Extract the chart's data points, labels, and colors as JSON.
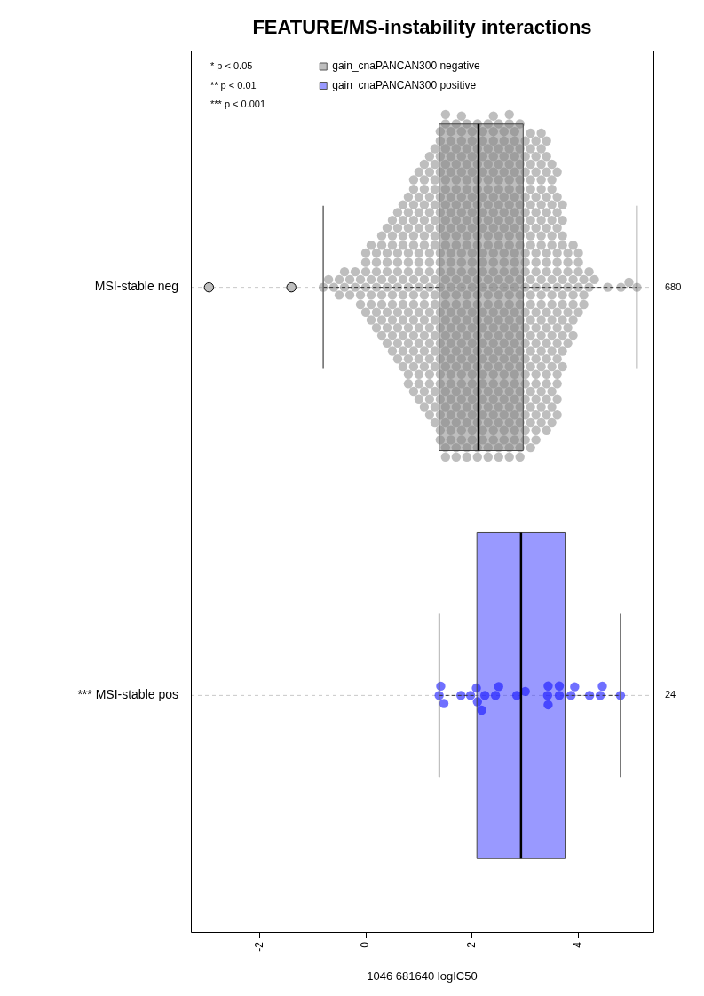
{
  "chart_data": {
    "type": "box",
    "title": "FEATURE/MS-instability interactions",
    "xlabel": "1046 681640 logIC50",
    "orientation": "horizontal",
    "categories": [
      "MSI-stable neg",
      "*** MSI-stable pos"
    ],
    "y2_categories": [
      "680",
      "24"
    ],
    "xlim": [
      -3.29,
      5.41
    ],
    "xticks": [
      -2,
      0,
      2,
      4
    ],
    "grid": "y",
    "legend": "top",
    "annotations": [
      "* p < 0.05",
      "** p < 0.01",
      "*** p < 0.001"
    ],
    "series": [
      {
        "name": "gain_cnaPANCAN300 negative",
        "color": "#bebebe",
        "boxes": [
          {
            "low": -0.8,
            "q1": 1.38,
            "median": 2.12,
            "q3": 2.96,
            "high": 5.1,
            "outliers": [
              -2.95,
              -1.4
            ]
          },
          null
        ]
      },
      {
        "name": "gain_cnaPANCAN300 positive",
        "color": "#9999ff",
        "boxes": [
          null,
          {
            "low": 1.38,
            "q1": 2.09,
            "median": 2.92,
            "q3": 3.75,
            "high": 4.79
          }
        ]
      },
      {
        "type": "scatter",
        "color": "#bebebe",
        "marker": "circle",
        "x": [
          "MSI-stable neg",
          "MSI-stable neg",
          "MSI-stable neg",
          "MSI-stable neg",
          "MSI-stable neg",
          "MSI-stable neg",
          "MSI-stable neg",
          "MSI-stable neg",
          "MSI-stable neg",
          "MSI-stable neg",
          "MSI-stable neg",
          "MSI-stable neg",
          "MSI-stable neg",
          "MSI-stable neg",
          "MSI-stable neg",
          "MSI-stable neg",
          "MSI-stable neg",
          "MSI-stable neg",
          "MSI-stable neg",
          "MSI-stable neg",
          "MSI-stable neg",
          "MSI-stable neg",
          "MSI-stable neg",
          "MSI-stable neg",
          "MSI-stable neg",
          "MSI-stable neg",
          "MSI-stable neg",
          "MSI-stable neg",
          "MSI-stable neg",
          "MSI-stable neg",
          "MSI-stable neg",
          "MSI-stable neg",
          "MSI-stable neg",
          "MSI-stable neg",
          "MSI-stable neg",
          "MSI-stable neg",
          "MSI-stable neg",
          "MSI-stable neg",
          "MSI-stable neg",
          "MSI-stable neg",
          "MSI-stable neg",
          "MSI-stable neg",
          "MSI-stable neg",
          "MSI-stable neg",
          "MSI-stable neg",
          "MSI-stable neg",
          "MSI-stable neg",
          "MSI-stable neg",
          "MSI-stable neg",
          "MSI-stable neg",
          "MSI-stable neg",
          "MSI-stable neg",
          "MSI-stable neg",
          "MSI-stable neg",
          "MSI-stable neg",
          "MSI-stable neg",
          "MSI-stable neg",
          "MSI-stable neg",
          "MSI-stable neg",
          "MSI-stable neg",
          "MSI-stable neg",
          "MSI-stable neg",
          "MSI-stable neg",
          "MSI-stable neg",
          "MSI-stable neg",
          "MSI-stable neg",
          "MSI-stable neg",
          "MSI-stable neg",
          "MSI-stable neg",
          "MSI-stable neg",
          "MSI-stable neg",
          "MSI-stable neg",
          "MSI-stable neg",
          "MSI-stable neg",
          "MSI-stable neg",
          "MSI-stable neg",
          "MSI-stable neg",
          "MSI-stable neg",
          "MSI-stable neg",
          "MSI-stable neg",
          "MSI-stable neg",
          "MSI-stable neg",
          "MSI-stable neg",
          "MSI-stable neg",
          "MSI-stable neg",
          "MSI-stable neg",
          "MSI-stable neg",
          "MSI-stable neg",
          "MSI-stable neg",
          "MSI-stable neg",
          "MSI-stable neg",
          "MSI-stable neg",
          "MSI-stable neg",
          "MSI-stable neg",
          "MSI-stable neg",
          "MSI-stable neg",
          "MSI-stable neg",
          "MSI-stable neg",
          "MSI-stable neg",
          "MSI-stable neg",
          "MSI-stable neg",
          "MSI-stable neg",
          "MSI-stable neg",
          "MSI-stable neg",
          "MSI-stable neg",
          "MSI-stable neg",
          "MSI-stable neg",
          "MSI-stable neg",
          "MSI-stable neg",
          "MSI-stable neg",
          "MSI-stable neg",
          "MSI-stable neg",
          "MSI-stable neg",
          "MSI-stable neg",
          "MSI-stable neg",
          "MSI-stable neg",
          "MSI-stable neg",
          "MSI-stable neg",
          "MSI-stable neg",
          "MSI-stable neg",
          "MSI-stable neg",
          "MSI-stable neg",
          "MSI-stable neg",
          "MSI-stable neg",
          "MSI-stable neg",
          "MSI-stable neg",
          "MSI-stable neg",
          "MSI-stable neg",
          "MSI-stable neg",
          "MSI-stable neg",
          "MSI-stable neg",
          "MSI-stable neg",
          "MSI-stable neg",
          "MSI-stable neg",
          "MSI-stable neg",
          "MSI-stable neg",
          "MSI-stable neg",
          "MSI-stable neg",
          "MSI-stable neg",
          "MSI-stable neg",
          "MSI-stable neg",
          "MSI-stable neg",
          "MSI-stable neg",
          "MSI-stable neg",
          "MSI-stable neg",
          "MSI-stable neg",
          "MSI-stable neg",
          "MSI-stable neg",
          "MSI-stable neg",
          "MSI-stable neg",
          "MSI-stable neg",
          "MSI-stable neg",
          "MSI-stable neg",
          "MSI-stable neg",
          "MSI-stable neg",
          "MSI-stable neg",
          "MSI-stable neg",
          "MSI-stable neg",
          "MSI-stable neg",
          "MSI-stable neg",
          "MSI-stable neg",
          "MSI-stable neg",
          "MSI-stable neg",
          "MSI-stable neg",
          "MSI-stable neg",
          "MSI-stable neg",
          "MSI-stable neg",
          "MSI-stable neg",
          "MSI-stable neg",
          "MSI-stable neg",
          "MSI-stable neg",
          "MSI-stable neg",
          "MSI-stable neg",
          "MSI-stable neg",
          "MSI-stable neg",
          "MSI-stable neg",
          "MSI-stable neg",
          "MSI-stable neg",
          "MSI-stable neg",
          "MSI-stable neg",
          "MSI-stable neg",
          "MSI-stable neg",
          "MSI-stable neg",
          "MSI-stable neg",
          "MSI-stable neg",
          "MSI-stable neg",
          "MSI-stable neg",
          "MSI-stable neg",
          "MSI-stable neg",
          "MSI-stable neg",
          "MSI-stable neg",
          "MSI-stable neg",
          "MSI-stable neg",
          "MSI-stable neg",
          "MSI-stable neg",
          "MSI-stable neg",
          "MSI-stable neg",
          "MSI-stable neg",
          "MSI-stable neg",
          "MSI-stable neg",
          "MSI-stable neg",
          "MSI-stable neg",
          "MSI-stable neg",
          "MSI-stable neg",
          "MSI-stable neg",
          "MSI-stable neg",
          "MSI-stable neg",
          "MSI-stable neg",
          "MSI-stable neg",
          "MSI-stable neg",
          "MSI-stable neg",
          "MSI-stable neg",
          "MSI-stable neg",
          "MSI-stable neg",
          "MSI-stable neg",
          "MSI-stable neg",
          "MSI-stable neg",
          "MSI-stable neg",
          "MSI-stable neg",
          "MSI-stable neg",
          "MSI-stable neg",
          "MSI-stable neg",
          "MSI-stable neg",
          "MSI-stable neg",
          "MSI-stable neg",
          "MSI-stable neg",
          "MSI-stable neg",
          "MSI-stable neg",
          "MSI-stable neg",
          "MSI-stable neg",
          "MSI-stable neg",
          "MSI-stable neg",
          "MSI-stable neg",
          "MSI-stable neg",
          "MSI-stable neg",
          "MSI-stable neg",
          "MSI-stable neg",
          "MSI-stable neg",
          "MSI-stable neg",
          "MSI-stable neg",
          "MSI-stable neg",
          "MSI-stable neg",
          "MSI-stable neg",
          "MSI-stable neg",
          "MSI-stable neg",
          "MSI-stable neg",
          "MSI-stable neg",
          "MSI-stable neg",
          "MSI-stable neg",
          "MSI-stable neg",
          "MSI-stable neg",
          "MSI-stable neg",
          "MSI-stable neg",
          "MSI-stable neg",
          "MSI-stable neg",
          "MSI-stable neg",
          "MSI-stable neg",
          "MSI-stable neg",
          "MSI-stable neg",
          "MSI-stable neg",
          "MSI-stable neg",
          "MSI-stable neg",
          "MSI-stable neg",
          "MSI-stable neg",
          "MSI-stable neg",
          "MSI-stable neg",
          "MSI-stable neg",
          "MSI-stable neg",
          "MSI-stable neg",
          "MSI-stable neg",
          "MSI-stable neg",
          "MSI-stable neg",
          "MSI-stable neg",
          "MSI-stable neg",
          "MSI-stable neg",
          "MSI-stable neg",
          "MSI-stable neg",
          "MSI-stable neg",
          "MSI-stable neg",
          "MSI-stable neg",
          "MSI-stable neg",
          "MSI-stable neg",
          "MSI-stable neg",
          "MSI-stable neg",
          "MSI-stable neg",
          "MSI-stable neg",
          "MSI-stable neg",
          "MSI-stable neg",
          "MSI-stable neg",
          "MSI-stable neg",
          "MSI-stable neg",
          "MSI-stable neg",
          "MSI-stable neg",
          "MSI-stable neg",
          "MSI-stable neg",
          "MSI-stable neg",
          "MSI-stable neg",
          "MSI-stable neg",
          "MSI-stable neg",
          "MSI-stable neg",
          "MSI-stable neg",
          "MSI-stable neg",
          "MSI-stable neg",
          "MSI-stable neg",
          "MSI-stable neg",
          "MSI-stable neg",
          "MSI-stable neg",
          "MSI-stable neg",
          "MSI-stable neg",
          "MSI-stable neg",
          "MSI-stable neg",
          "MSI-stable neg",
          "MSI-stable neg",
          "MSI-stable neg",
          "MSI-stable neg",
          "MSI-stable neg",
          "MSI-stable neg",
          "MSI-stable neg",
          "MSI-stable neg",
          "MSI-stable neg",
          "MSI-stable neg",
          "MSI-stable neg",
          "MSI-stable neg",
          "MSI-stable neg",
          "MSI-stable neg",
          "MSI-stable neg",
          "MSI-stable neg",
          "MSI-stable neg",
          "MSI-stable neg",
          "MSI-stable neg",
          "MSI-stable neg",
          "MSI-stable neg",
          "MSI-stable neg",
          "MSI-stable neg",
          "MSI-stable neg",
          "MSI-stable neg",
          "MSI-stable neg",
          "MSI-stable neg",
          "MSI-stable neg",
          "MSI-stable neg",
          "MSI-stable neg",
          "MSI-stable neg",
          "MSI-stable neg",
          "MSI-stable neg",
          "MSI-stable neg",
          "MSI-stable neg",
          "MSI-stable neg",
          "MSI-stable neg",
          "MSI-stable neg",
          "MSI-stable neg",
          "MSI-stable neg",
          "MSI-stable neg",
          "MSI-stable neg",
          "MSI-stable neg",
          "MSI-stable neg",
          "MSI-stable neg",
          "MSI-stable neg",
          "MSI-stable neg",
          "MSI-stable neg",
          "MSI-stable neg",
          "MSI-stable neg",
          "MSI-stable neg",
          "MSI-stable neg",
          "MSI-stable neg",
          "MSI-stable neg",
          "MSI-stable neg",
          "MSI-stable neg",
          "MSI-stable neg",
          "MSI-stable neg",
          "MSI-stable neg",
          "MSI-stable neg",
          "MSI-stable neg",
          "MSI-stable neg",
          "MSI-stable neg",
          "MSI-stable neg",
          "MSI-stable neg",
          "MSI-stable neg",
          "MSI-stable neg",
          "MSI-stable neg",
          "MSI-stable neg",
          "MSI-stable neg",
          "MSI-stable neg",
          "MSI-stable neg",
          "MSI-stable neg",
          "MSI-stable neg",
          "MSI-stable neg",
          "MSI-stable neg",
          "MSI-stable neg",
          "MSI-stable neg",
          "MSI-stable neg",
          "MSI-stable neg",
          "MSI-stable neg",
          "MSI-stable neg",
          "MSI-stable neg",
          "MSI-stable neg",
          "MSI-stable neg",
          "MSI-stable neg",
          "MSI-stable neg",
          "MSI-stable neg",
          "MSI-stable neg",
          "MSI-stable neg",
          "MSI-stable neg",
          "MSI-stable neg",
          "MSI-stable neg",
          "MSI-stable neg",
          "MSI-stable neg",
          "MSI-stable neg",
          "MSI-stable neg",
          "MSI-stable neg",
          "MSI-stable neg",
          "MSI-stable neg",
          "MSI-stable neg",
          "MSI-stable neg",
          "MSI-stable neg",
          "MSI-stable neg",
          "MSI-stable neg",
          "MSI-stable neg",
          "MSI-stable neg",
          "MSI-stable neg",
          "MSI-stable neg",
          "MSI-stable neg",
          "MSI-stable neg",
          "MSI-stable neg",
          "MSI-stable neg",
          "MSI-stable neg",
          "MSI-stable neg",
          "MSI-stable neg",
          "MSI-stable neg",
          "MSI-stable neg",
          "MSI-stable neg",
          "MSI-stable neg",
          "MSI-stable neg",
          "MSI-stable neg",
          "MSI-stable neg",
          "MSI-stable neg",
          "MSI-stable neg",
          "MSI-stable neg",
          "MSI-stable neg",
          "MSI-stable neg",
          "MSI-stable neg",
          "MSI-stable neg",
          "MSI-stable neg",
          "MSI-stable neg",
          "MSI-stable neg",
          "MSI-stable neg",
          "MSI-stable neg",
          "MSI-stable neg",
          "MSI-stable neg",
          "MSI-stable neg",
          "MSI-stable neg",
          "MSI-stable neg",
          "MSI-stable neg",
          "MSI-stable neg",
          "MSI-stable neg",
          "MSI-stable neg",
          "MSI-stable neg",
          "MSI-stable neg",
          "MSI-stable neg",
          "MSI-stable neg",
          "MSI-stable neg",
          "MSI-stable neg",
          "MSI-stable neg",
          "MSI-stable neg",
          "MSI-stable neg",
          "MSI-stable neg",
          "MSI-stable neg",
          "MSI-stable neg",
          "MSI-stable neg",
          "MSI-stable neg",
          "MSI-stable neg",
          "MSI-stable neg",
          "MSI-stable neg",
          "MSI-stable neg",
          "MSI-stable neg",
          "MSI-stable neg",
          "MSI-stable neg",
          "MSI-stable neg",
          "MSI-stable neg",
          "MSI-stable neg",
          "MSI-stable neg",
          "MSI-stable neg",
          "MSI-stable neg",
          "MSI-stable neg",
          "MSI-stable neg",
          "MSI-stable neg",
          "MSI-stable neg",
          "MSI-stable neg",
          "MSI-stable neg",
          "MSI-stable neg",
          "MSI-stable neg",
          "MSI-stable neg",
          "MSI-stable neg",
          "MSI-stable neg",
          "MSI-stable neg",
          "MSI-stable neg",
          "MSI-stable neg",
          "MSI-stable neg",
          "MSI-stable neg",
          "MSI-stable neg",
          "MSI-stable neg",
          "MSI-stable neg",
          "MSI-stable neg",
          "MSI-stable neg",
          "MSI-stable neg",
          "MSI-stable neg",
          "MSI-stable neg",
          "MSI-stable neg",
          "MSI-stable neg",
          "MSI-stable neg",
          "MSI-stable neg",
          "MSI-stable neg",
          "MSI-stable neg",
          "MSI-stable neg",
          "MSI-stable neg",
          "MSI-stable neg",
          "MSI-stable neg",
          "MSI-stable neg",
          "MSI-stable neg",
          "MSI-stable neg",
          "MSI-stable neg",
          "MSI-stable neg",
          "MSI-stable neg",
          "MSI-stable neg",
          "MSI-stable neg",
          "MSI-stable neg",
          "MSI-stable neg",
          "MSI-stable neg",
          "MSI-stable neg",
          "MSI-stable neg",
          "MSI-stable neg",
          "MSI-stable neg",
          "MSI-stable neg",
          "MSI-stable neg",
          "MSI-stable neg",
          "MSI-stable neg",
          "MSI-stable neg",
          "MSI-stable neg",
          "MSI-stable neg",
          "MSI-stable neg",
          "MSI-stable neg",
          "MSI-stable neg",
          "MSI-stable neg",
          "MSI-stable neg",
          "MSI-stable neg",
          "MSI-stable neg",
          "MSI-stable neg",
          "MSI-stable neg",
          "MSI-stable neg",
          "MSI-stable neg",
          "MSI-stable neg",
          "MSI-stable neg",
          "MSI-stable neg",
          "MSI-stable neg",
          "MSI-stable neg",
          "MSI-stable neg",
          "MSI-stable neg",
          "MSI-stable neg",
          "MSI-stable neg",
          "MSI-stable neg",
          "MSI-stable neg",
          "MSI-stable neg",
          "MSI-stable neg",
          "MSI-stable neg",
          "MSI-stable neg",
          "MSI-stable neg",
          "MSI-stable neg",
          "MSI-stable neg",
          "MSI-stable neg",
          "MSI-stable neg",
          "MSI-stable neg",
          "MSI-stable neg",
          "MSI-stable neg",
          "MSI-stable neg",
          "MSI-stable neg",
          "MSI-stable neg",
          "MSI-stable neg",
          "MSI-stable neg",
          "MSI-stable neg",
          "MSI-stable neg",
          "MSI-stable neg",
          "MSI-stable neg",
          "MSI-stable neg",
          "MSI-stable neg",
          "MSI-stable neg",
          "MSI-stable neg",
          "MSI-stable neg",
          "MSI-stable neg",
          "MSI-stable neg",
          "MSI-stable neg",
          "MSI-stable neg",
          "MSI-stable neg",
          "MSI-stable neg",
          "MSI-stable neg",
          "MSI-stable neg",
          "MSI-stable neg",
          "MSI-stable neg",
          "MSI-stable neg",
          "MSI-stable neg",
          "MSI-stable neg",
          "MSI-stable neg",
          "MSI-stable neg",
          "MSI-stable neg",
          "MSI-stable neg",
          "MSI-stable neg",
          "MSI-stable neg",
          "MSI-stable neg",
          "MSI-stable neg",
          "MSI-stable neg",
          "MSI-stable neg",
          "MSI-stable neg",
          "MSI-stable neg",
          "MSI-stable neg",
          "MSI-stable neg",
          "MSI-stable neg",
          "MSI-stable neg",
          "MSI-stable neg",
          "MSI-stable neg",
          "MSI-stable neg",
          "MSI-stable neg",
          "MSI-stable neg",
          "MSI-stable neg",
          "MSI-stable neg",
          "MSI-stable neg",
          "MSI-stable neg",
          "MSI-stable neg",
          "MSI-stable neg",
          "MSI-stable neg",
          "MSI-stable neg",
          "MSI-stable neg",
          "MSI-stable neg",
          "MSI-stable neg",
          "MSI-stable neg",
          "MSI-stable neg",
          "MSI-stable neg",
          "MSI-stable neg",
          "MSI-stable neg",
          "MSI-stable neg",
          "MSI-stable neg",
          "MSI-stable neg",
          "MSI-stable neg",
          "MSI-stable neg",
          "MSI-stable neg",
          "MSI-stable neg",
          "MSI-stable neg",
          "MSI-stable neg",
          "MSI-stable neg",
          "MSI-stable neg",
          "MSI-stable neg",
          "MSI-stable neg",
          "MSI-stable neg",
          "MSI-stable neg",
          "MSI-stable neg",
          "MSI-stable neg",
          "MSI-stable neg",
          "MSI-stable neg",
          "MSI-stable neg",
          "MSI-stable neg",
          "MSI-stable neg",
          "MSI-stable neg",
          "MSI-stable neg",
          "MSI-stable neg",
          "MSI-stable neg",
          "MSI-stable neg",
          "MSI-stable neg",
          "MSI-stable neg",
          "MSI-stable neg",
          "MSI-stable neg",
          "MSI-stable neg",
          "MSI-stable neg",
          "MSI-stable neg",
          "MSI-stable neg",
          "MSI-stable neg",
          "MSI-stable neg",
          "MSI-stable neg",
          "MSI-stable neg",
          "MSI-stable neg",
          "MSI-stable neg",
          "MSI-stable neg"
        ],
        "values": [
          -0.8,
          -0.7,
          -0.6,
          -0.5,
          -0.5,
          -0.4,
          -0.4,
          -0.3,
          -0.3,
          -0.2,
          -0.2,
          -0.1,
          -0.1,
          -0.1,
          0,
          0,
          0,
          0,
          0,
          0.1,
          0.1,
          0.1,
          0.1,
          0.1,
          0.2,
          0.2,
          0.2,
          0.2,
          0.2,
          0.2,
          0.3,
          0.3,
          0.3,
          0.3,
          0.3,
          0.3,
          0.3,
          0.4,
          0.4,
          0.4,
          0.4,
          0.4,
          0.4,
          0.4,
          0.4,
          0.5,
          0.5,
          0.5,
          0.5,
          0.5,
          0.5,
          0.5,
          0.5,
          0.5,
          0.6,
          0.6,
          0.6,
          0.6,
          0.6,
          0.6,
          0.6,
          0.6,
          0.6,
          0.6,
          0.7,
          0.7,
          0.7,
          0.7,
          0.7,
          0.7,
          0.7,
          0.7,
          0.7,
          0.7,
          0.7,
          0.8,
          0.8,
          0.8,
          0.8,
          0.8,
          0.8,
          0.8,
          0.8,
          0.8,
          0.8,
          0.8,
          0.8,
          0.8,
          0.9,
          0.9,
          0.9,
          0.9,
          0.9,
          0.9,
          0.9,
          0.9,
          0.9,
          0.9,
          0.9,
          0.9,
          0.9,
          0.9,
          1,
          1,
          1,
          1,
          1,
          1,
          1,
          1,
          1,
          1,
          1,
          1,
          1,
          1,
          1,
          1.1,
          1.1,
          1.1,
          1.1,
          1.1,
          1.1,
          1.1,
          1.1,
          1.1,
          1.1,
          1.1,
          1.1,
          1.1,
          1.1,
          1.1,
          1.1,
          1.2,
          1.2,
          1.2,
          1.2,
          1.2,
          1.2,
          1.2,
          1.2,
          1.2,
          1.2,
          1.2,
          1.2,
          1.2,
          1.2,
          1.2,
          1.2,
          1.2,
          1.3,
          1.3,
          1.3,
          1.3,
          1.3,
          1.3,
          1.3,
          1.3,
          1.3,
          1.3,
          1.3,
          1.3,
          1.3,
          1.3,
          1.3,
          1.3,
          1.3,
          1.3,
          1.4,
          1.4,
          1.4,
          1.4,
          1.4,
          1.4,
          1.4,
          1.4,
          1.4,
          1.4,
          1.4,
          1.4,
          1.4,
          1.4,
          1.4,
          1.4,
          1.4,
          1.4,
          1.4,
          1.4,
          1.4,
          1.5,
          1.5,
          1.5,
          1.5,
          1.5,
          1.5,
          1.5,
          1.5,
          1.5,
          1.5,
          1.5,
          1.5,
          1.5,
          1.5,
          1.5,
          1.5,
          1.5,
          1.5,
          1.5,
          1.5,
          1.5,
          1.5,
          1.6,
          1.6,
          1.6,
          1.6,
          1.6,
          1.6,
          1.6,
          1.6,
          1.6,
          1.6,
          1.6,
          1.6,
          1.6,
          1.6,
          1.6,
          1.6,
          1.6,
          1.6,
          1.6,
          1.6,
          1.6,
          1.7,
          1.7,
          1.7,
          1.7,
          1.7,
          1.7,
          1.7,
          1.7,
          1.7,
          1.7,
          1.7,
          1.7,
          1.7,
          1.7,
          1.7,
          1.7,
          1.7,
          1.7,
          1.7,
          1.7,
          1.7,
          1.8,
          1.8,
          1.8,
          1.8,
          1.8,
          1.8,
          1.8,
          1.8,
          1.8,
          1.8,
          1.8,
          1.8,
          1.8,
          1.8,
          1.8,
          1.8,
          1.8,
          1.8,
          1.8,
          1.8,
          1.8,
          1.8,
          1.9,
          1.9,
          1.9,
          1.9,
          1.9,
          1.9,
          1.9,
          1.9,
          1.9,
          1.9,
          1.9,
          1.9,
          1.9,
          1.9,
          1.9,
          1.9,
          1.9,
          1.9,
          1.9,
          1.9,
          1.9,
          2,
          2,
          2,
          2,
          2,
          2,
          2,
          2,
          2,
          2,
          2,
          2,
          2,
          2,
          2,
          2,
          2,
          2,
          2,
          2,
          2,
          2.1,
          2.1,
          2.1,
          2.1,
          2.1,
          2.1,
          2.1,
          2.1,
          2.1,
          2.1,
          2.1,
          2.1,
          2.1,
          2.1,
          2.1,
          2.1,
          2.1,
          2.1,
          2.1,
          2.1,
          2.1,
          2.2,
          2.2,
          2.2,
          2.2,
          2.2,
          2.2,
          2.2,
          2.2,
          2.2,
          2.2,
          2.2,
          2.2,
          2.2,
          2.2,
          2.2,
          2.2,
          2.2,
          2.2,
          2.2,
          2.2,
          2.2,
          2.3,
          2.3,
          2.3,
          2.3,
          2.3,
          2.3,
          2.3,
          2.3,
          2.3,
          2.3,
          2.3,
          2.3,
          2.3,
          2.3,
          2.3,
          2.3,
          2.3,
          2.3,
          2.3,
          2.3,
          2.3,
          2.4,
          2.4,
          2.4,
          2.4,
          2.4,
          2.4,
          2.4,
          2.4,
          2.4,
          2.4,
          2.4,
          2.4,
          2.4,
          2.4,
          2.4,
          2.4,
          2.4,
          2.4,
          2.4,
          2.4,
          2.4,
          2.4,
          2.5,
          2.5,
          2.5,
          2.5,
          2.5,
          2.5,
          2.5,
          2.5,
          2.5,
          2.5,
          2.5,
          2.5,
          2.5,
          2.5,
          2.5,
          2.5,
          2.5,
          2.5,
          2.5,
          2.5,
          2.5,
          2.6,
          2.6,
          2.6,
          2.6,
          2.6,
          2.6,
          2.6,
          2.6,
          2.6,
          2.6,
          2.6,
          2.6,
          2.6,
          2.6,
          2.6,
          2.6,
          2.6,
          2.6,
          2.6,
          2.6,
          2.6,
          2.7,
          2.7,
          2.7,
          2.7,
          2.7,
          2.7,
          2.7,
          2.7,
          2.7,
          2.7,
          2.7,
          2.7,
          2.7,
          2.7,
          2.7,
          2.7,
          2.7,
          2.7,
          2.7,
          2.7,
          2.7,
          2.7,
          2.8,
          2.8,
          2.8,
          2.8,
          2.8,
          2.8,
          2.8,
          2.8,
          2.8,
          2.8,
          2.8,
          2.8,
          2.8,
          2.8,
          2.8,
          2.8,
          2.8,
          2.8,
          2.8,
          2.8,
          2.8,
          2.9,
          2.9,
          2.9,
          2.9,
          2.9,
          2.9,
          2.9,
          2.9,
          2.9,
          2.9,
          2.9,
          2.9,
          2.9,
          2.9,
          2.9,
          2.9,
          2.9,
          2.9,
          2.9,
          2.9,
          2.9,
          3,
          3,
          3,
          3,
          3,
          3,
          3,
          3,
          3,
          3,
          3,
          3,
          3,
          3,
          3,
          3,
          3,
          3,
          3,
          3,
          3.1,
          3.1,
          3.1,
          3.1,
          3.1,
          3.1,
          3.1,
          3.1,
          3.1,
          3.1,
          3.1,
          3.1,
          3.1,
          3.1,
          3.1,
          3.1,
          3.1,
          3.1,
          3.1,
          3.1,
          3.2,
          3.2,
          3.2,
          3.2,
          3.2,
          3.2,
          3.2,
          3.2,
          3.2,
          3.2,
          3.2,
          3.2,
          3.2,
          3.2,
          3.2,
          3.2,
          3.2,
          3.2,
          3.2,
          3.2,
          3.3,
          3.3,
          3.3,
          3.3,
          3.3,
          3.3,
          3.3,
          3.3,
          3.3,
          3.3,
          3.3,
          3.3,
          3.3,
          3.3,
          3.3,
          3.3,
          3.3,
          3.3,
          3.3,
          3.4,
          3.4,
          3.4,
          3.4,
          3.4,
          3.4,
          3.4,
          3.4,
          3.4,
          3.4,
          3.4,
          3.4,
          3.4,
          3.4,
          3.4,
          3.4,
          3.4,
          3.4,
          3.4,
          3.5,
          3.5,
          3.5,
          3.5,
          3.5,
          3.5,
          3.5,
          3.5,
          3.5,
          3.5,
          3.5,
          3.5,
          3.5,
          3.5,
          3.5,
          3.5,
          3.5,
          3.6,
          3.6,
          3.6,
          3.6,
          3.6,
          3.6,
          3.6,
          3.6,
          3.6,
          3.6,
          3.6,
          3.6,
          3.6,
          3.6,
          3.6,
          3.6,
          3.7,
          3.7,
          3.7,
          3.7,
          3.7,
          3.7,
          3.7,
          3.7,
          3.7,
          3.7,
          3.7,
          3.8,
          3.8,
          3.8,
          3.8,
          3.8,
          3.8,
          3.8,
          3.9,
          3.9,
          3.9,
          3.9,
          3.9,
          3.9,
          4,
          4,
          4,
          4,
          4,
          4.1,
          4.1,
          4.1,
          4.2,
          4.2,
          4.3,
          4.55,
          4.8,
          4.95,
          5.1
        ]
      },
      {
        "type": "scatter",
        "color": "#7070ff",
        "marker": "circle",
        "x": [
          "*** MSI-stable pos",
          "*** MSI-stable pos",
          "*** MSI-stable pos",
          "*** MSI-stable pos",
          "*** MSI-stable pos",
          "*** MSI-stable pos",
          "*** MSI-stable pos",
          "*** MSI-stable pos",
          "*** MSI-stable pos",
          "*** MSI-stable pos",
          "*** MSI-stable pos",
          "*** MSI-stable pos",
          "*** MSI-stable pos",
          "*** MSI-stable pos",
          "*** MSI-stable pos",
          "*** MSI-stable pos",
          "*** MSI-stable pos",
          "*** MSI-stable pos",
          "*** MSI-stable pos",
          "*** MSI-stable pos",
          "*** MSI-stable pos",
          "*** MSI-stable pos",
          "*** MSI-stable pos",
          "*** MSI-stable pos"
        ],
        "values": [
          1.38,
          1.41,
          1.47,
          1.79,
          1.97,
          2.08,
          2.1,
          2.18,
          2.24,
          2.44,
          2.5,
          2.84,
          3.0,
          3.42,
          3.43,
          3.43,
          3.64,
          3.64,
          3.86,
          3.93,
          4.21,
          4.41,
          4.45,
          4.79
        ]
      }
    ]
  }
}
